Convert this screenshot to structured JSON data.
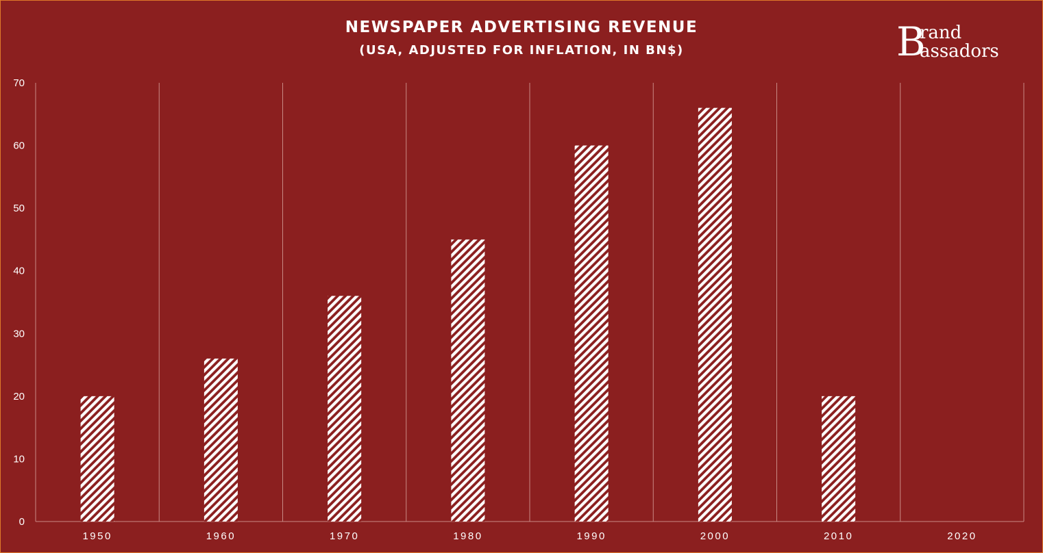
{
  "logo": {
    "initial": "B",
    "line1": "rand",
    "line2": "assadors"
  },
  "colors": {
    "background": "#8b1f1f",
    "border": "#e07a2a",
    "bar_stripe": "#ffffff",
    "gridline": "#c98a85"
  },
  "chart_data": {
    "type": "bar",
    "title": "NEWSPAPER ADVERTISING REVENUE",
    "subtitle": "(USA, ADJUSTED FOR INFLATION, IN BN$)",
    "xlabel": "",
    "ylabel": "",
    "categories": [
      "1950",
      "1960",
      "1970",
      "1980",
      "1990",
      "2000",
      "2010",
      "2020"
    ],
    "values": [
      20,
      26,
      36,
      45,
      60,
      66,
      20,
      null
    ],
    "ylim": [
      0,
      70
    ],
    "yticks": [
      "0",
      "10",
      "20",
      "30",
      "40",
      "50",
      "60",
      "70"
    ],
    "bar_fill": "diagonal-hatch",
    "grid": "vertical category separators"
  }
}
